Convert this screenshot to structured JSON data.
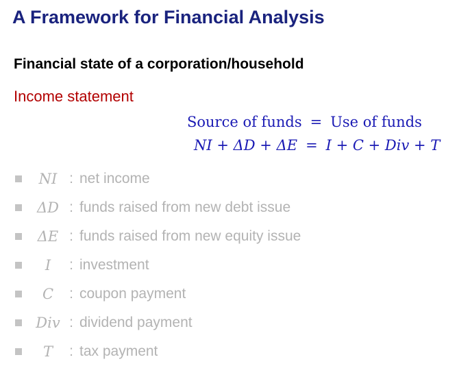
{
  "slide": {
    "title": "A Framework for Financial Analysis",
    "subtitle": "Financial state of a corporation/household",
    "section": "Income statement"
  },
  "equations": {
    "line1": {
      "left": "Source of funds",
      "op": "=",
      "right": "Use of funds"
    },
    "line2": {
      "left": "NI + ΔD + ΔE",
      "op": "=",
      "right": "I + C + Div + T"
    }
  },
  "items": [
    {
      "symbol": "NI",
      "colon": ":",
      "text": "net income"
    },
    {
      "symbol": "ΔD",
      "colon": ":",
      "text": "funds raised from new debt issue"
    },
    {
      "symbol": "ΔE",
      "colon": ":",
      "text": "funds raised from new equity issue"
    },
    {
      "symbol": "I",
      "colon": ":",
      "text": "investment"
    },
    {
      "symbol": "C",
      "colon": ":",
      "text": "coupon payment"
    },
    {
      "symbol": "Div",
      "colon": ":",
      "text": "dividend payment"
    },
    {
      "symbol": "T",
      "colon": ":",
      "text": "tax payment"
    }
  ],
  "colors": {
    "title": "#1a237e",
    "section": "#b20000",
    "equation": "#1a1ab4",
    "muted": "#b3b3b3"
  }
}
